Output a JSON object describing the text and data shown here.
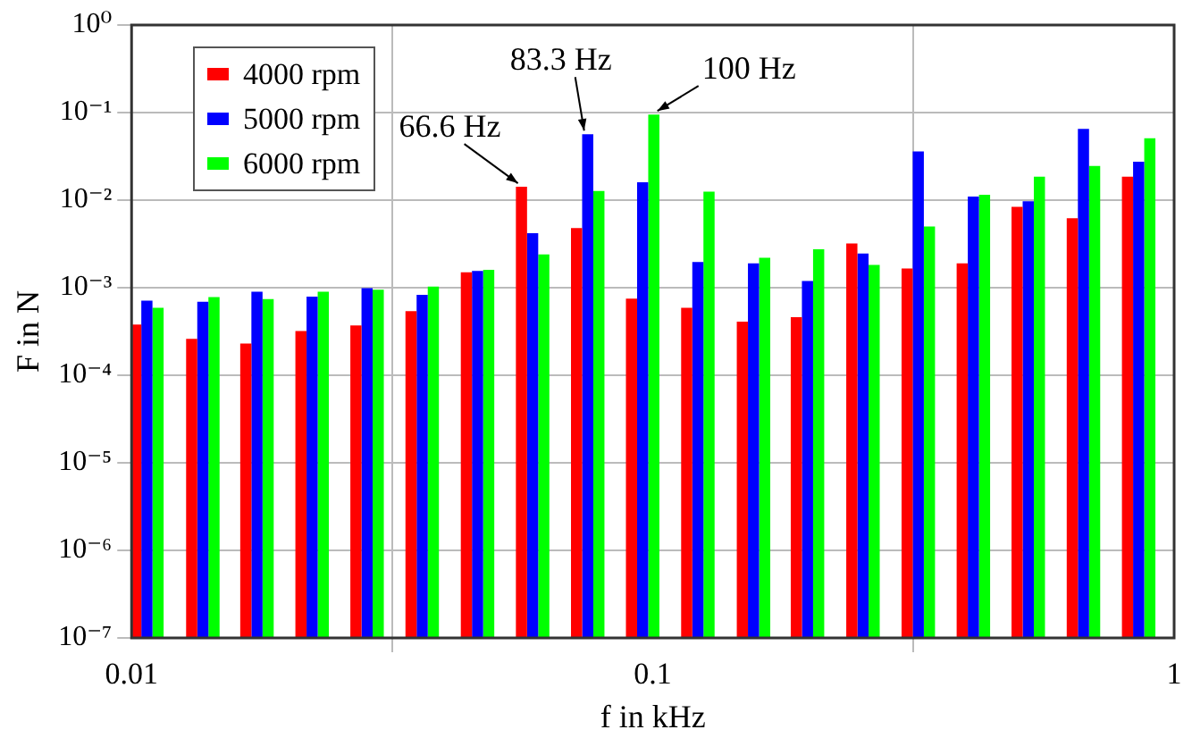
{
  "chart_data": {
    "type": "bar",
    "xlabel": "f in kHz",
    "ylabel": "F in N",
    "log": "xy",
    "grid": true,
    "legend": "top left",
    "x": [
      0.0107,
      0.0137,
      0.0174,
      0.0222,
      0.0283,
      0.0361,
      0.0461,
      0.0588,
      0.075,
      0.0956,
      0.122,
      0.156,
      0.198,
      0.253,
      0.323,
      0.412,
      0.525,
      0.67,
      0.855
    ],
    "xlim": [
      0.01,
      1
    ],
    "xticks": [
      0.01,
      0.1,
      1
    ],
    "ylim": [
      1e-07,
      1
    ],
    "yticks": [
      {
        "value": 1e-07,
        "label": "10⁻⁷"
      },
      {
        "value": 1e-06,
        "label": "10⁻⁶"
      },
      {
        "value": 1e-05,
        "label": "10⁻⁵"
      },
      {
        "value": 0.0001,
        "label": "10⁻⁴"
      },
      {
        "value": 0.001,
        "label": "10⁻³"
      },
      {
        "value": 0.01,
        "label": "10⁻²"
      },
      {
        "value": 0.1,
        "label": "10⁻¹"
      },
      {
        "value": 1,
        "label": "10⁰"
      }
    ],
    "series": [
      {
        "name": "4000 rpm",
        "color": "#ff0000",
        "values": [
          0.00038,
          0.00026,
          0.00023,
          0.00032,
          0.00037,
          0.00054,
          0.0015,
          0.0142,
          0.0048,
          0.00075,
          0.00059,
          0.00041,
          0.00046,
          0.0032,
          0.00166,
          0.0019,
          0.0084,
          0.0062,
          0.0185
        ]
      },
      {
        "name": "5000 rpm",
        "color": "#0000ff",
        "values": [
          0.00071,
          0.00069,
          0.0009,
          0.00079,
          0.00099,
          0.00083,
          0.00155,
          0.0042,
          0.0566,
          0.016,
          0.00197,
          0.0019,
          0.00119,
          0.00245,
          0.036,
          0.011,
          0.0097,
          0.065,
          0.0274
        ]
      },
      {
        "name": "6000 rpm",
        "color": "#00ff00",
        "values": [
          0.00059,
          0.00078,
          0.00074,
          0.0009,
          0.00095,
          0.00103,
          0.0016,
          0.0024,
          0.0127,
          0.095,
          0.0125,
          0.0022,
          0.00275,
          0.00182,
          0.005,
          0.0115,
          0.0185,
          0.0246,
          0.051
        ]
      }
    ],
    "annotations": [
      {
        "text": "66.6 Hz",
        "x": 0.0588,
        "y": 0.0142
      },
      {
        "text": "83.3 Hz",
        "x": 0.075,
        "y": 0.0566
      },
      {
        "text": "100 Hz",
        "x": 0.0956,
        "y": 0.095
      }
    ]
  }
}
